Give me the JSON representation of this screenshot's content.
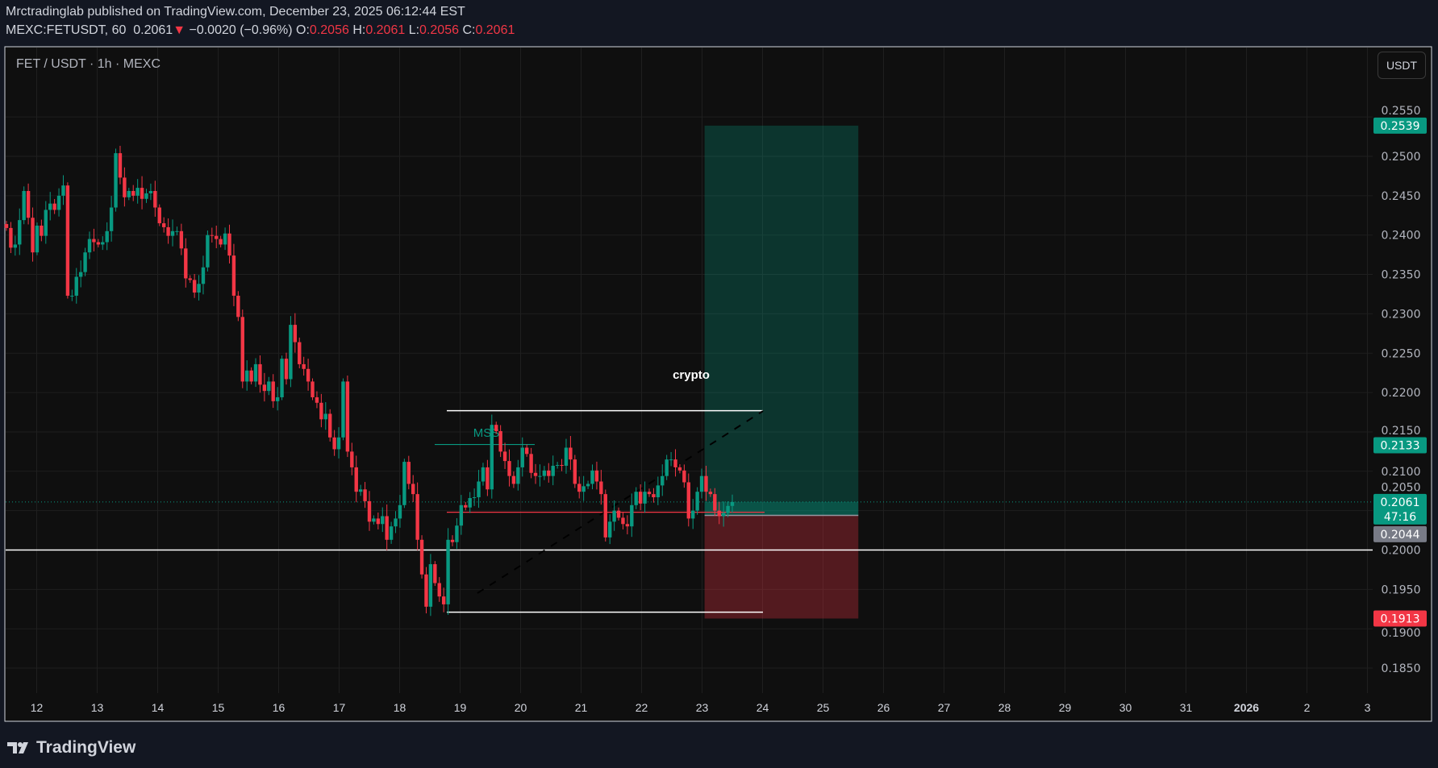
{
  "header": {
    "published": "Mrctradinglab published on TradingView.com, December 23, 2025 06:12:44 EST",
    "symbol": "MEXC:FETUSDT, 60",
    "last": "0.2061",
    "change": "−0.0020 (−0.96%)",
    "o_label": "O:",
    "o": "0.2056",
    "h_label": "H:",
    "h": "0.2061",
    "l_label": "L:",
    "l": "0.2056",
    "c_label": "C:",
    "c": "0.2061"
  },
  "chart_title": "FET / USDT · 1h · MEXC",
  "currency_button": "USDT",
  "logo_text": "TradingView",
  "colors": {
    "up": "#089981",
    "down": "#f23645",
    "background": "#0f0f0f",
    "grid": "#1f1f1f",
    "label_gray": "#787b86"
  },
  "chart_data": {
    "type": "candlestick",
    "interval": "1h",
    "start": "2025-12-11T12:00",
    "end": "2025-12-23T12:00",
    "closes": [
      0.2409,
      0.2384,
      0.2388,
      0.2419,
      0.2456,
      0.2422,
      0.2378,
      0.2412,
      0.2399,
      0.2432,
      0.244,
      0.2432,
      0.245,
      0.2463,
      0.2323,
      0.2323,
      0.2347,
      0.2353,
      0.2378,
      0.2395,
      0.2391,
      0.2388,
      0.2391,
      0.2405,
      0.2435,
      0.2504,
      0.2473,
      0.2448,
      0.2456,
      0.245,
      0.246,
      0.2446,
      0.2453,
      0.2456,
      0.2435,
      0.2415,
      0.241,
      0.2399,
      0.2405,
      0.2405,
      0.2383,
      0.2345,
      0.2343,
      0.2327,
      0.2338,
      0.2359,
      0.24,
      0.2399,
      0.2395,
      0.2388,
      0.2402,
      0.2374,
      0.2323,
      0.2296,
      0.2214,
      0.2228,
      0.2214,
      0.2236,
      0.221,
      0.2202,
      0.2214,
      0.2189,
      0.2194,
      0.2243,
      0.2217,
      0.2286,
      0.2264,
      0.2236,
      0.223,
      0.2214,
      0.2194,
      0.2187,
      0.2166,
      0.2173,
      0.2143,
      0.2128,
      0.2143,
      0.2214,
      0.2125,
      0.2105,
      0.2074,
      0.2077,
      0.2062,
      0.2036,
      0.204,
      0.2033,
      0.2043,
      0.2013,
      0.203,
      0.204,
      0.2057,
      0.2112,
      0.2084,
      0.2071,
      0.2013,
      0.1969,
      0.1928,
      0.1982,
      0.1958,
      0.1941,
      0.1931,
      0.2013,
      0.201,
      0.2031,
      0.2057,
      0.2054,
      0.2066,
      0.2067,
      0.2087,
      0.2105,
      0.2077,
      0.2159,
      0.2151,
      0.2125,
      0.2113,
      0.2094,
      0.2084,
      0.2105,
      0.213,
      0.2122,
      0.2098,
      0.2094,
      0.2094,
      0.2101,
      0.2094,
      0.2107,
      0.2108,
      0.2107,
      0.213,
      0.2115,
      0.2084,
      0.2074,
      0.2081,
      0.2084,
      0.2101,
      0.2087,
      0.2071,
      0.2016,
      0.2036,
      0.205,
      0.2041,
      0.2033,
      0.203,
      0.2057,
      0.2074,
      0.2059,
      0.2074,
      0.2071,
      0.2067,
      0.2082,
      0.2094,
      0.2115,
      0.2115,
      0.2105,
      0.2101,
      0.2086,
      0.204,
      0.205,
      0.2074,
      0.2094,
      0.2074,
      0.2071,
      0.205,
      0.2043,
      0.2047,
      0.2056,
      0.2061
    ],
    "ylim": [
      0.181,
      0.262
    ],
    "y_ticks": [
      "0.2550",
      "0.2500",
      "0.2450",
      "0.2400",
      "0.2350",
      "0.2300",
      "0.2250",
      "0.2200",
      "0.2150",
      "0.2100",
      "0.2050",
      "0.2000",
      "0.1950",
      "0.1900",
      "0.1850"
    ],
    "x_ticks": [
      "12",
      "13",
      "14",
      "15",
      "16",
      "17",
      "18",
      "19",
      "20",
      "21",
      "22",
      "23",
      "24",
      "25",
      "26",
      "27",
      "28",
      "29",
      "30",
      "31",
      "2026",
      "2",
      "3"
    ],
    "grid": true,
    "price_labels": [
      {
        "value": "0.2539",
        "kind": "target"
      },
      {
        "value": "0.2133",
        "kind": "level"
      },
      {
        "value": "0.2061",
        "sub": "47:16",
        "kind": "last"
      },
      {
        "value": "0.2044",
        "kind": "entry"
      },
      {
        "value": "0.1913",
        "kind": "stop"
      }
    ],
    "long_position": {
      "target": 0.2539,
      "entry": 0.2044,
      "stop": 0.1913,
      "from": "2025-12-23T01:00",
      "to": "2025-12-25T14:00"
    },
    "annotations": {
      "text_label": "crypto",
      "mss_label": "MSS",
      "mss_level": 0.2134,
      "range_high": 0.2177,
      "range_low": 0.1921,
      "support_line": 0.2,
      "red_level": 0.2048,
      "current_price": 0.2061
    }
  }
}
